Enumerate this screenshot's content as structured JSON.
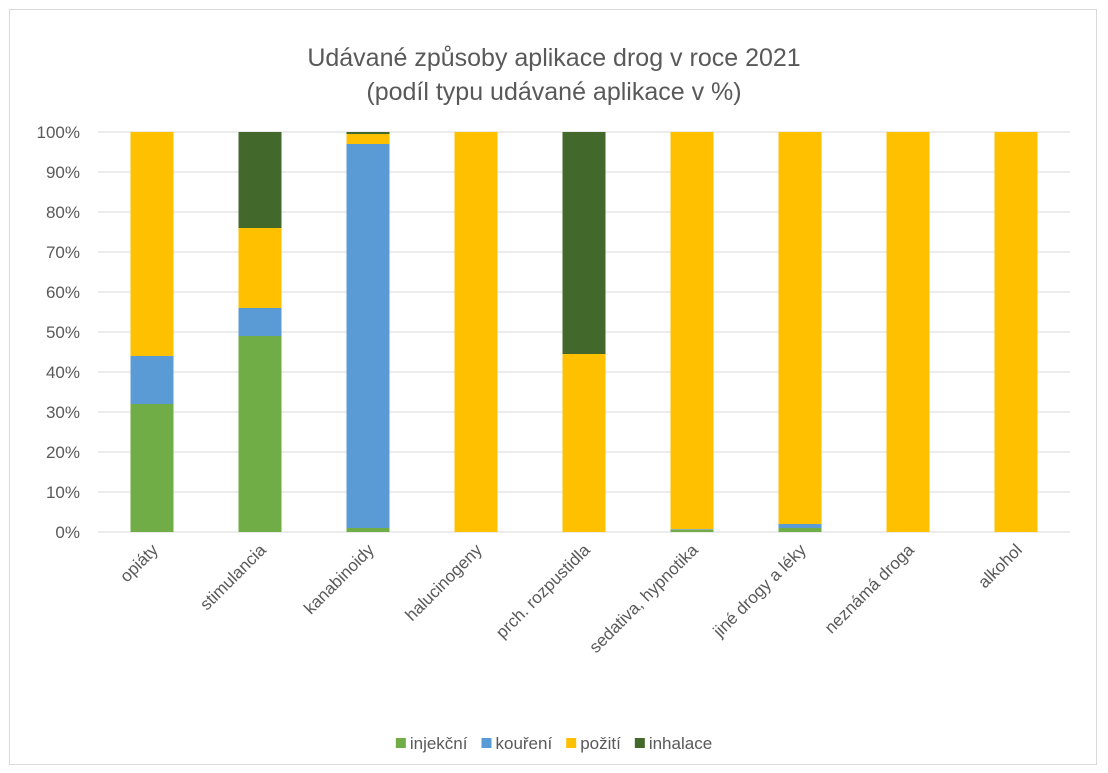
{
  "chart_data": {
    "type": "bar",
    "stacked": true,
    "title": "Udávané způsoby aplikace drog v roce 2021",
    "subtitle": "(podíl typu udávané aplikace v %)",
    "xlabel": "",
    "ylabel": "",
    "ylim": [
      0,
      100
    ],
    "yticks": [
      "0%",
      "10%",
      "20%",
      "30%",
      "40%",
      "50%",
      "60%",
      "70%",
      "80%",
      "90%",
      "100%"
    ],
    "grid": true,
    "legend_position": "bottom",
    "categories": [
      "opiáty",
      "stimulancia",
      "kanabinoidy",
      "halucinogeny",
      "prch. rozpustidla",
      "sedativa, hypnotika",
      "jiné drogy a léky",
      "neznámá droga",
      "alkohol"
    ],
    "series": [
      {
        "name": "injekční",
        "color": "#70ad47",
        "values": [
          32,
          49,
          1,
          0,
          0,
          0.5,
          1,
          0,
          0
        ]
      },
      {
        "name": "kouření",
        "color": "#5b9bd5",
        "values": [
          12,
          7,
          96,
          0,
          0,
          0.2,
          1,
          0,
          0
        ]
      },
      {
        "name": "požití",
        "color": "#ffc000",
        "values": [
          56,
          20,
          2.5,
          100,
          44.5,
          99.3,
          98,
          100,
          100
        ]
      },
      {
        "name": "inhalace",
        "color": "#43682b",
        "values": [
          0,
          24,
          0.5,
          0,
          55.5,
          0,
          0,
          0,
          0
        ]
      }
    ]
  }
}
